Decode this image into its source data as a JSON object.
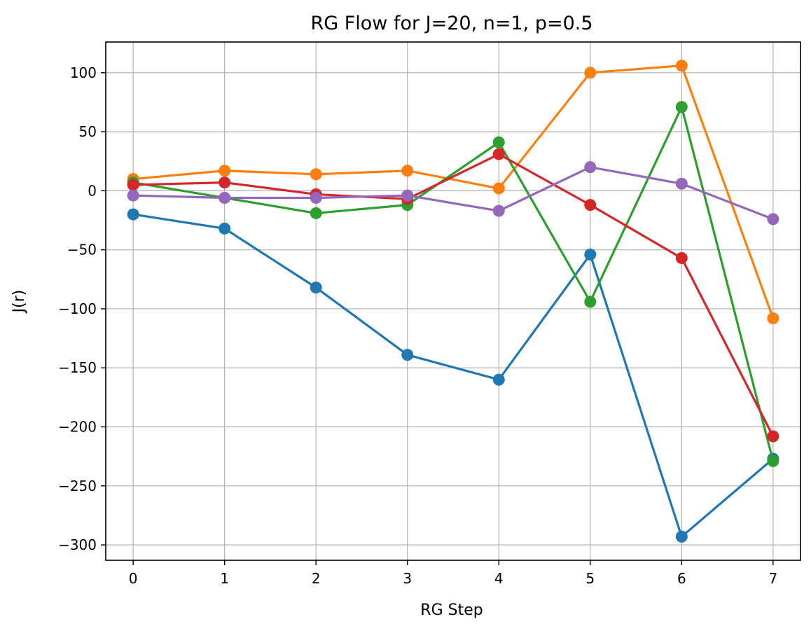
{
  "chart_data": {
    "type": "line",
    "title": "RG Flow for J=20, n=1, p=0.5",
    "xlabel": "RG Step",
    "ylabel": "J(r)",
    "x": [
      0,
      1,
      2,
      3,
      4,
      5,
      6,
      7
    ],
    "xticks": [
      "0",
      "1",
      "2",
      "3",
      "4",
      "5",
      "6",
      "7"
    ],
    "yticks": [
      "100",
      "50",
      "0",
      "−50",
      "−100",
      "−150",
      "−200",
      "−250",
      "−300"
    ],
    "ytick_values": [
      100,
      50,
      0,
      -50,
      -100,
      -150,
      -200,
      -250,
      -300
    ],
    "xlim": [
      -0.3,
      7.3
    ],
    "ylim": [
      -313,
      126
    ],
    "grid": true,
    "marker": "circle",
    "series": [
      {
        "color": "#1f77b4",
        "values": [
          -20,
          -32,
          -82,
          -139,
          -160,
          -54,
          -293,
          -227
        ]
      },
      {
        "color": "#ff7f0e",
        "values": [
          10,
          17,
          14,
          17,
          2,
          100,
          106,
          -108
        ]
      },
      {
        "color": "#2ca02c",
        "values": [
          7,
          -6,
          -19,
          -12,
          41,
          -94,
          71,
          -229
        ]
      },
      {
        "color": "#d62728",
        "values": [
          5,
          7,
          -3,
          -7,
          31,
          -12,
          -57,
          -208
        ]
      },
      {
        "color": "#9467bd",
        "values": [
          -4,
          -6,
          -6,
          -4,
          -17,
          20,
          6,
          -24
        ]
      }
    ]
  }
}
